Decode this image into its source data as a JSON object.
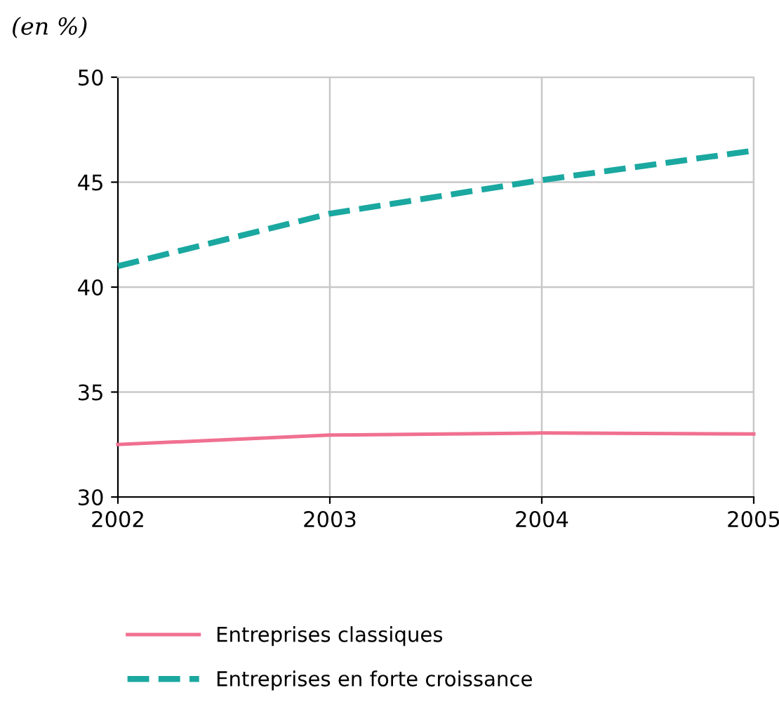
{
  "chart_data": {
    "type": "line",
    "ylabel": "(en %)",
    "x": [
      2002,
      2003,
      2004,
      2005
    ],
    "series": [
      {
        "name": "Entreprises classiques",
        "color": "#f07090",
        "values": [
          32.5,
          32.95,
          33.05,
          33.0
        ],
        "line_style": "solid"
      },
      {
        "name": "Entreprises en forte croissance",
        "color": "#1aa8a0",
        "values": [
          41.0,
          43.5,
          45.1,
          46.5
        ],
        "line_style": "dashed"
      }
    ],
    "xlim": [
      2002,
      2005
    ],
    "xticks": [
      2002,
      2003,
      2004,
      2005
    ],
    "ylim": [
      30,
      50
    ],
    "yticks": [
      30,
      35,
      40,
      45,
      50
    ],
    "grid": true,
    "legend": "bottom",
    "marker": "none"
  }
}
